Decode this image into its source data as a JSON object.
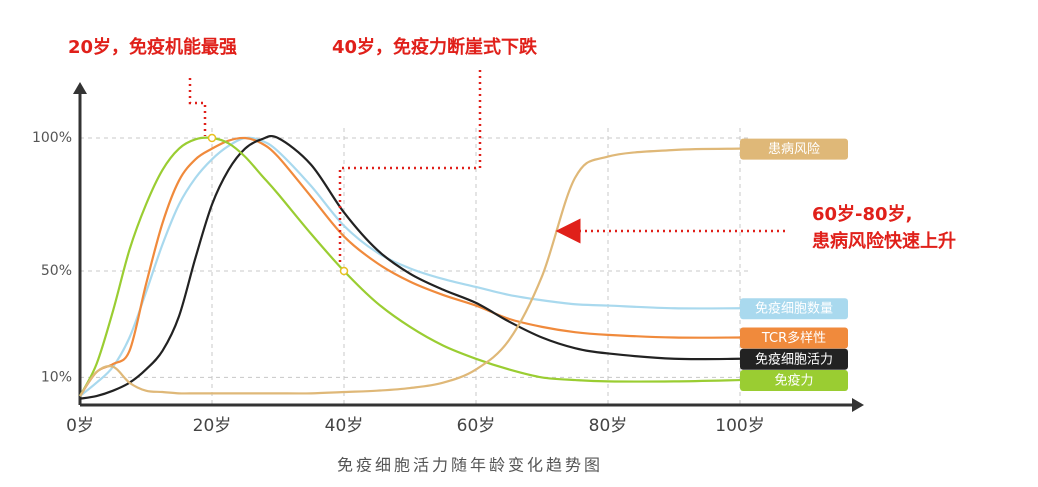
{
  "chart_data": {
    "type": "line",
    "title": "免疫细胞活力随年龄变化趋势图",
    "annotations": [
      "20岁，免疫机能最强",
      "40岁，免疫力断崖式下跌",
      "60岁-80岁,",
      "患病风险快速上升"
    ],
    "x": [
      0,
      2.5,
      5,
      7.5,
      10,
      12.5,
      15,
      17.5,
      20,
      22.5,
      25,
      27.5,
      30,
      35,
      40,
      45,
      50,
      55,
      60,
      65,
      70,
      75,
      80,
      90,
      100
    ],
    "xlim": [
      0,
      100
    ],
    "xticks": [
      {
        "value": 0,
        "label": "0岁"
      },
      {
        "value": 20,
        "label": "20岁"
      },
      {
        "value": 40,
        "label": "40岁"
      },
      {
        "value": 60,
        "label": "60岁"
      },
      {
        "value": 80,
        "label": "80岁"
      },
      {
        "value": 100,
        "label": "100岁"
      }
    ],
    "ylim": [
      0,
      100
    ],
    "yticks": [
      {
        "value": 10,
        "label": "10%"
      },
      {
        "value": 50,
        "label": "50%"
      },
      {
        "value": 100,
        "label": "100%"
      }
    ],
    "grid": true,
    "legend": "right-inline",
    "series": [
      {
        "name": "免疫细胞数量",
        "color": "#a9d9ee",
        "values": [
          3,
          8,
          14,
          25,
          42,
          60,
          75,
          85,
          92,
          97,
          100,
          99,
          95,
          82,
          67,
          57,
          51,
          47,
          44,
          41,
          39,
          37.5,
          37,
          36,
          36
        ]
      },
      {
        "name": "TCR多样性",
        "color": "#f08a3c",
        "values": [
          3,
          12,
          15,
          20,
          45,
          68,
          84,
          92,
          96,
          99,
          100,
          98,
          93,
          78,
          63,
          53,
          46,
          41,
          37,
          32,
          29,
          27,
          26,
          25,
          25
        ]
      },
      {
        "name": "免疫细胞活力",
        "color": "#222222",
        "values": [
          2,
          3,
          5,
          8,
          13,
          20,
          33,
          55,
          75,
          88,
          96,
          99.5,
          100,
          90,
          72,
          58,
          49,
          43,
          38,
          31,
          25,
          21,
          19,
          17,
          17
        ]
      },
      {
        "name": "免疫力",
        "color": "#9acd32",
        "values": [
          3,
          15,
          35,
          58,
          75,
          88,
          96,
          99.5,
          100,
          98,
          93,
          86,
          79,
          64,
          50,
          38,
          29,
          22,
          17,
          13,
          10,
          9,
          8.5,
          8.5,
          9
        ]
      },
      {
        "name": "患病风险",
        "color": "#dfb878",
        "values": [
          3,
          12,
          14,
          8,
          5,
          4.5,
          4,
          4,
          4,
          4,
          4,
          4,
          4,
          4,
          4.5,
          5,
          6,
          8,
          13,
          24,
          48,
          85,
          93,
          95.5,
          96
        ]
      }
    ]
  }
}
